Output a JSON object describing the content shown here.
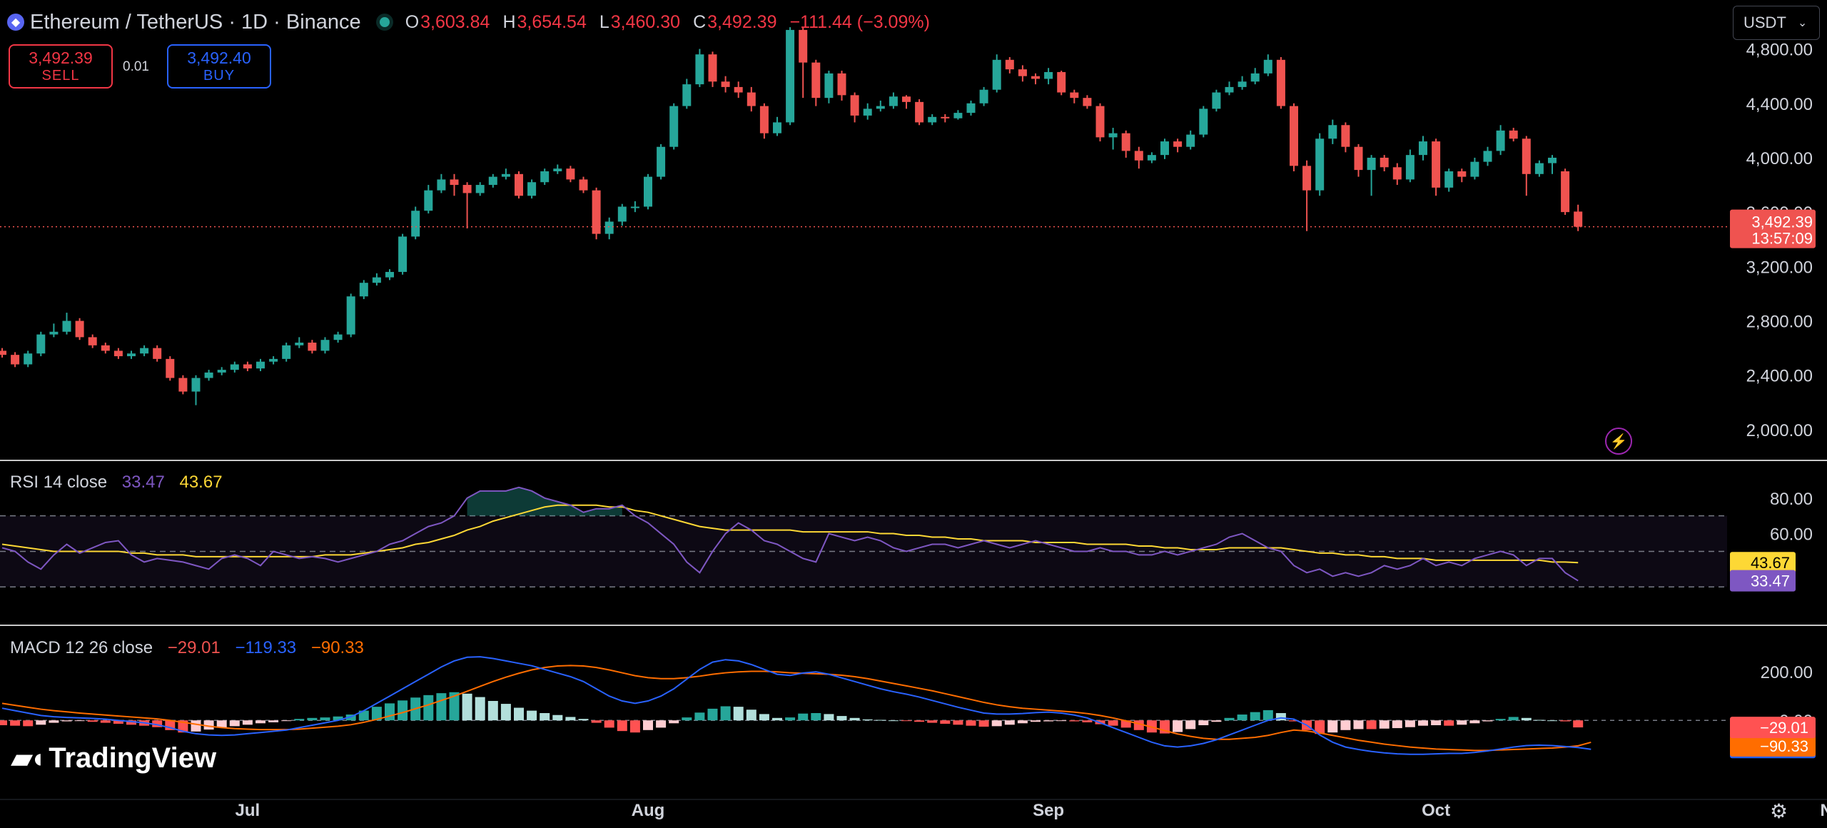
{
  "header": {
    "title": "Ethereum / TetherUS · 1D · Binance",
    "o_label": "O",
    "o_value": "3,603.84",
    "h_label": "H",
    "h_value": "3,654.54",
    "l_label": "L",
    "l_value": "3,460.30",
    "c_label": "C",
    "c_value": "3,492.39",
    "change": "−111.44 (−3.09%)"
  },
  "trade": {
    "sell_price": "3,492.39",
    "sell_label": "SELL",
    "spread": "0.01",
    "buy_price": "3,492.40",
    "buy_label": "BUY"
  },
  "currency": {
    "label": "USDT"
  },
  "price_tag": {
    "price": "3,492.39",
    "countdown": "13:57:09"
  },
  "rsi_legend": {
    "title": "RSI 14 close",
    "rsi": "33.47",
    "ma": "43.67"
  },
  "macd_legend": {
    "title": "MACD 12 26 close",
    "hist": "−29.01",
    "macd": "−119.33",
    "signal": "−90.33"
  },
  "brand": {
    "name": "TradingView"
  },
  "colors": {
    "up": "#26a69a",
    "down": "#ef5350",
    "rsi": "#7e57c2",
    "rsi_ma": "#fdd835",
    "macd": "#2962ff",
    "signal": "#ff6d00"
  },
  "chart_data": [
    {
      "type": "candlestick",
      "title": "Ethereum / TetherUS · 1D · Binance",
      "ylim": [
        1800,
        4950
      ],
      "y_ticks": [
        "4,800.00",
        "4,400.00",
        "4,000.00",
        "3,600.00",
        "3,200.00",
        "2,800.00",
        "2,400.00",
        "2,000.00"
      ],
      "y_tick_values": [
        4800,
        4400,
        4000,
        3600,
        3200,
        2800,
        2400,
        2000
      ],
      "x_ticks": [
        "Jul",
        "Aug",
        "Sep",
        "Oct",
        "Nov"
      ],
      "x_tick_index": [
        19,
        50,
        81,
        111,
        142
      ],
      "last_price": 3492.39,
      "close": [
        2550,
        2480,
        2560,
        2700,
        2720,
        2800,
        2680,
        2620,
        2580,
        2540,
        2560,
        2600,
        2520,
        2380,
        2280,
        2380,
        2420,
        2440,
        2480,
        2450,
        2500,
        2520,
        2620,
        2640,
        2580,
        2660,
        2700,
        2980,
        3080,
        3120,
        3160,
        3420,
        3610,
        3760,
        3840,
        3800,
        3740,
        3800,
        3860,
        3880,
        3720,
        3820,
        3900,
        3920,
        3840,
        3760,
        3440,
        3530,
        3640,
        3640,
        3860,
        4080,
        4380,
        4540,
        4760,
        4560,
        4520,
        4480,
        4380,
        4180,
        4260,
        4940,
        4700,
        4440,
        4620,
        4460,
        4310,
        4360,
        4380,
        4450,
        4410,
        4260,
        4300,
        4290,
        4330,
        4400,
        4500,
        4720,
        4650,
        4600,
        4580,
        4630,
        4480,
        4440,
        4380,
        4150,
        4180,
        4050,
        3980,
        4020,
        4120,
        4080,
        4170,
        4360,
        4480,
        4520,
        4560,
        4620,
        4720,
        4380,
        3940,
        3760,
        4140,
        4240,
        4080,
        3910,
        4000,
        3930,
        3840,
        4020,
        4120,
        3780,
        3900,
        3860,
        3970,
        4050,
        4200,
        4140,
        3880,
        3960,
        4000,
        3600,
        3492.39
      ],
      "open": [
        2580,
        2550,
        2480,
        2560,
        2700,
        2720,
        2800,
        2680,
        2620,
        2580,
        2540,
        2560,
        2600,
        2520,
        2380,
        2280,
        2380,
        2420,
        2440,
        2480,
        2450,
        2500,
        2520,
        2620,
        2640,
        2580,
        2660,
        2700,
        2980,
        3080,
        3120,
        3160,
        3420,
        3610,
        3760,
        3840,
        3800,
        3740,
        3800,
        3860,
        3880,
        3720,
        3820,
        3900,
        3920,
        3840,
        3760,
        3440,
        3530,
        3640,
        3640,
        3860,
        4080,
        4380,
        4540,
        4760,
        4560,
        4520,
        4480,
        4380,
        4180,
        4260,
        4940,
        4700,
        4440,
        4620,
        4460,
        4310,
        4360,
        4380,
        4450,
        4410,
        4260,
        4300,
        4290,
        4330,
        4400,
        4500,
        4720,
        4650,
        4600,
        4580,
        4630,
        4480,
        4440,
        4380,
        4150,
        4180,
        4050,
        3980,
        4020,
        4120,
        4080,
        4170,
        4360,
        4480,
        4520,
        4560,
        4620,
        4720,
        4380,
        3940,
        3760,
        4140,
        4240,
        4080,
        3910,
        4000,
        3930,
        3840,
        4020,
        4120,
        3780,
        3900,
        3860,
        3970,
        4050,
        4200,
        4140,
        3880,
        3960,
        3900,
        3603.84
      ],
      "high": [
        2600,
        2570,
        2580,
        2720,
        2780,
        2860,
        2820,
        2700,
        2640,
        2600,
        2580,
        2620,
        2620,
        2540,
        2400,
        2400,
        2440,
        2460,
        2500,
        2500,
        2520,
        2540,
        2640,
        2680,
        2660,
        2680,
        2720,
        3000,
        3100,
        3150,
        3180,
        3440,
        3640,
        3800,
        3880,
        3880,
        3820,
        3820,
        3880,
        3920,
        3900,
        3840,
        3920,
        3950,
        3940,
        3860,
        3780,
        3560,
        3660,
        3680,
        3880,
        4100,
        4400,
        4580,
        4800,
        4780,
        4600,
        4560,
        4520,
        4400,
        4300,
        4960,
        4960,
        4720,
        4640,
        4640,
        4480,
        4400,
        4420,
        4480,
        4460,
        4430,
        4320,
        4320,
        4350,
        4420,
        4520,
        4760,
        4740,
        4680,
        4620,
        4660,
        4640,
        4500,
        4460,
        4400,
        4220,
        4200,
        4080,
        4040,
        4140,
        4140,
        4200,
        4380,
        4500,
        4560,
        4600,
        4660,
        4760,
        4740,
        4400,
        3980,
        4180,
        4280,
        4260,
        4100,
        4020,
        4020,
        3960,
        4060,
        4160,
        4140,
        3920,
        3920,
        4000,
        4080,
        4240,
        4220,
        4160,
        3980,
        4020,
        3920,
        3654.54
      ],
      "low": [
        2530,
        2460,
        2460,
        2540,
        2680,
        2700,
        2660,
        2600,
        2560,
        2520,
        2520,
        2540,
        2500,
        2360,
        2260,
        2180,
        2360,
        2400,
        2420,
        2430,
        2430,
        2480,
        2500,
        2600,
        2560,
        2560,
        2640,
        2680,
        2960,
        3060,
        3100,
        3140,
        3400,
        3590,
        3740,
        3720,
        3480,
        3720,
        3780,
        3840,
        3700,
        3700,
        3800,
        3880,
        3820,
        3740,
        3400,
        3400,
        3500,
        3600,
        3620,
        3840,
        4060,
        4360,
        4520,
        4520,
        4480,
        4440,
        4340,
        4140,
        4160,
        4240,
        4440,
        4380,
        4400,
        4420,
        4260,
        4280,
        4340,
        4360,
        4360,
        4240,
        4240,
        4260,
        4280,
        4310,
        4380,
        4480,
        4620,
        4560,
        4540,
        4540,
        4460,
        4400,
        4360,
        4120,
        4060,
        4000,
        3920,
        3960,
        3990,
        4040,
        4060,
        4150,
        4340,
        4460,
        4500,
        4540,
        4600,
        4360,
        3900,
        3460,
        3720,
        4100,
        4040,
        3860,
        3720,
        3900,
        3800,
        3820,
        3980,
        3720,
        3750,
        3820,
        3840,
        3940,
        4020,
        4120,
        3720,
        3860,
        3880,
        3580,
        3460.3
      ]
    },
    {
      "type": "line",
      "title": "RSI 14 close",
      "ylim": [
        10,
        100
      ],
      "y_ticks": [
        "80.00",
        "60.00"
      ],
      "y_tick_values": [
        80,
        60
      ],
      "bands": [
        70,
        50,
        30
      ],
      "series": [
        {
          "name": "RSI",
          "values": [
            52,
            50,
            44,
            40,
            48,
            54,
            49,
            52,
            55,
            56,
            48,
            44,
            46,
            45,
            44,
            42,
            40,
            46,
            48,
            46,
            42,
            50,
            48,
            46,
            47,
            46,
            44,
            46,
            48,
            50,
            54,
            56,
            60,
            64,
            66,
            70,
            80,
            84,
            84,
            84,
            86,
            84,
            80,
            78,
            76,
            72,
            74,
            74,
            76,
            70,
            66,
            60,
            54,
            44,
            38,
            50,
            60,
            66,
            62,
            56,
            54,
            50,
            46,
            44,
            60,
            58,
            56,
            58,
            56,
            52,
            50,
            52,
            54,
            54,
            52,
            54,
            56,
            54,
            52,
            54,
            56,
            54,
            52,
            50,
            50,
            52,
            50,
            50,
            48,
            48,
            50,
            48,
            50,
            52,
            54,
            58,
            60,
            56,
            52,
            50,
            42,
            38,
            40,
            36,
            38,
            36,
            38,
            42,
            40,
            42,
            46,
            42,
            44,
            42,
            46,
            48,
            50,
            48,
            42,
            46,
            46,
            38,
            33.47
          ]
        },
        {
          "name": "RSI MA",
          "values": [
            54,
            53,
            52,
            51,
            50,
            50,
            50,
            50,
            50,
            50,
            49,
            49,
            48,
            48,
            48,
            47,
            47,
            47,
            47,
            47,
            47,
            47,
            47,
            47,
            47,
            48,
            48,
            48,
            49,
            50,
            51,
            52,
            54,
            55,
            57,
            59,
            62,
            64,
            67,
            69,
            71,
            73,
            75,
            76,
            76,
            76,
            76,
            75,
            75,
            73,
            72,
            70,
            68,
            66,
            64,
            63,
            62,
            62,
            62,
            62,
            62,
            62,
            61,
            61,
            61,
            61,
            61,
            61,
            60,
            60,
            59,
            59,
            58,
            58,
            57,
            57,
            56,
            56,
            56,
            56,
            55,
            55,
            55,
            55,
            54,
            54,
            54,
            54,
            53,
            53,
            52,
            52,
            51,
            51,
            51,
            52,
            52,
            52,
            52,
            52,
            51,
            50,
            49,
            49,
            48,
            48,
            47,
            47,
            46,
            46,
            46,
            45,
            45,
            45,
            45,
            45,
            45,
            45,
            45,
            45,
            44,
            44,
            43.67
          ]
        }
      ]
    },
    {
      "type": "bar+line",
      "title": "MACD 12 26 close",
      "ylim": [
        -320,
        380
      ],
      "y_ticks": [
        "200.00",
        "0.00"
      ],
      "y_tick_values": [
        200,
        0
      ],
      "series": [
        {
          "name": "Histogram",
          "values": [
            -20,
            -22,
            -24,
            -18,
            -10,
            -4,
            -2,
            -6,
            -10,
            -14,
            -18,
            -22,
            -28,
            -40,
            -50,
            -46,
            -38,
            -30,
            -24,
            -18,
            -12,
            -8,
            -2,
            6,
            10,
            12,
            16,
            24,
            40,
            56,
            70,
            82,
            94,
            104,
            112,
            116,
            110,
            96,
            80,
            68,
            52,
            40,
            30,
            22,
            14,
            6,
            -10,
            -30,
            -44,
            -50,
            -40,
            -30,
            -12,
            12,
            32,
            48,
            58,
            56,
            44,
            26,
            10,
            12,
            28,
            30,
            26,
            18,
            10,
            4,
            2,
            0,
            -2,
            -6,
            -10,
            -14,
            -18,
            -22,
            -26,
            -24,
            -18,
            -12,
            -6,
            -4,
            -2,
            -4,
            -8,
            -16,
            -22,
            -30,
            -40,
            -50,
            -54,
            -48,
            -36,
            -20,
            -6,
            10,
            24,
            34,
            42,
            30,
            -4,
            -40,
            -56,
            -50,
            -40,
            -36,
            -36,
            -34,
            -32,
            -28,
            -22,
            -20,
            -22,
            -18,
            -12,
            -4,
            6,
            14,
            10,
            2,
            0,
            -4,
            -29.01
          ]
        },
        {
          "name": "MACD",
          "values": [
            50,
            40,
            30,
            20,
            15,
            12,
            10,
            8,
            5,
            0,
            -5,
            -10,
            -18,
            -30,
            -45,
            -55,
            -60,
            -62,
            -60,
            -55,
            -50,
            -45,
            -40,
            -30,
            -20,
            -10,
            0,
            15,
            40,
            70,
            100,
            130,
            160,
            190,
            220,
            245,
            260,
            262,
            255,
            245,
            235,
            225,
            210,
            195,
            180,
            160,
            130,
            100,
            80,
            70,
            80,
            100,
            130,
            170,
            210,
            240,
            250,
            245,
            230,
            210,
            190,
            185,
            195,
            200,
            190,
            175,
            160,
            145,
            130,
            118,
            108,
            96,
            82,
            68,
            54,
            42,
            30,
            26,
            26,
            28,
            32,
            34,
            30,
            22,
            10,
            -10,
            -30,
            -50,
            -70,
            -90,
            -105,
            -110,
            -105,
            -95,
            -80,
            -60,
            -40,
            -20,
            0,
            10,
            5,
            -20,
            -60,
            -90,
            -110,
            -120,
            -128,
            -134,
            -138,
            -140,
            -140,
            -138,
            -136,
            -136,
            -132,
            -126,
            -118,
            -110,
            -104,
            -102,
            -104,
            -108,
            -112,
            -119.33
          ]
        },
        {
          "name": "Signal",
          "values": [
            70,
            62,
            54,
            46,
            40,
            35,
            30,
            26,
            22,
            18,
            14,
            10,
            6,
            0,
            -8,
            -16,
            -24,
            -30,
            -34,
            -36,
            -38,
            -38,
            -38,
            -36,
            -32,
            -28,
            -24,
            -18,
            -8,
            4,
            18,
            32,
            48,
            64,
            82,
            100,
            120,
            140,
            160,
            178,
            194,
            208,
            218,
            224,
            226,
            224,
            218,
            208,
            196,
            184,
            176,
            172,
            172,
            176,
            182,
            190,
            196,
            200,
            202,
            202,
            200,
            196,
            194,
            192,
            190,
            186,
            180,
            172,
            162,
            152,
            142,
            132,
            122,
            110,
            98,
            86,
            74,
            64,
            56,
            50,
            46,
            42,
            38,
            34,
            28,
            20,
            10,
            -2,
            -14,
            -28,
            -42,
            -56,
            -66,
            -74,
            -78,
            -78,
            -74,
            -70,
            -62,
            -50,
            -40,
            -44,
            -52,
            -62,
            -72,
            -82,
            -90,
            -98,
            -104,
            -110,
            -114,
            -118,
            -120,
            -122,
            -124,
            -124,
            -122,
            -120,
            -118,
            -116,
            -114,
            -110,
            -105,
            -90.33
          ]
        }
      ]
    }
  ]
}
